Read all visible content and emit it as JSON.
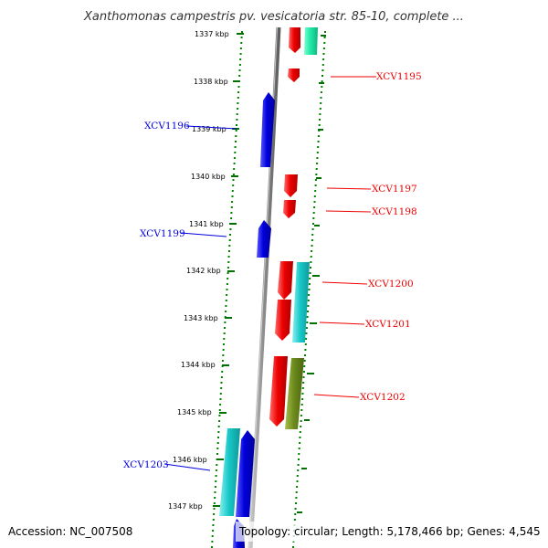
{
  "title": "Xanthomonas campestris pv. vesicatoria str. 85-10, complete ...",
  "footer": {
    "accession": "Accession: NC_007508",
    "topology": "Topology: circular; Length: 5,178,466 bp; Genes: 4,545"
  },
  "colors": {
    "forward_gene": "#ee0000",
    "reverse_gene": "#0000dd",
    "cyan_feature": "#18c8c8",
    "olive_feature": "#6e8c1c",
    "green_feature": "#1fe8a8",
    "tick": "#007000",
    "backbone": "#8a8a8a"
  },
  "scale": {
    "unit": "kbp",
    "ticks": [
      "1337 kbp",
      "1338 kbp",
      "1339 kbp",
      "1340 kbp",
      "1341 kbp",
      "1342 kbp",
      "1343 kbp",
      "1344 kbp",
      "1345 kbp",
      "1346 kbp",
      "1347 kbp"
    ]
  },
  "gene_labels": [
    {
      "name": "XCV1195",
      "strand": "forward"
    },
    {
      "name": "XCV1196",
      "strand": "reverse"
    },
    {
      "name": "XCV1197",
      "strand": "forward"
    },
    {
      "name": "XCV1198",
      "strand": "forward"
    },
    {
      "name": "XCV1199",
      "strand": "reverse"
    },
    {
      "name": "XCV1200",
      "strand": "forward"
    },
    {
      "name": "XCV1201",
      "strand": "forward"
    },
    {
      "name": "XCV1202",
      "strand": "forward"
    },
    {
      "name": "XCV1203",
      "strand": "reverse"
    }
  ]
}
